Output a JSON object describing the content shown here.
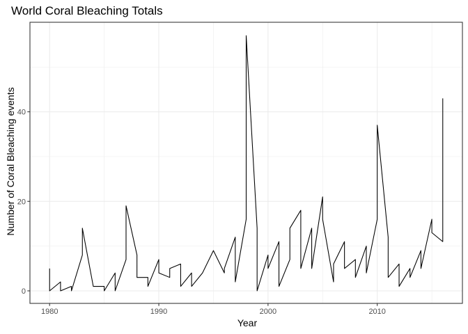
{
  "chart_data": {
    "type": "line",
    "title": "World Coral Bleaching Totals",
    "xlabel": "Year",
    "ylabel": "Number of Coral Bleaching events",
    "xlim": [
      1978.2,
      2017.8
    ],
    "ylim": [
      -2.8,
      60
    ],
    "xticks": [
      1980,
      1990,
      2000,
      2010
    ],
    "yticks": [
      0,
      20,
      40
    ],
    "grid": true,
    "line_color": "#000000",
    "x": [
      1980,
      1980,
      1981,
      1981,
      1982,
      1982,
      1983,
      1983,
      1984,
      1985,
      1985,
      1986,
      1986,
      1987,
      1987,
      1988,
      1988,
      1989,
      1989,
      1990,
      1990,
      1991,
      1991,
      1992,
      1992,
      1993,
      1993,
      1994,
      1995,
      1996,
      1996,
      1997,
      1997,
      1998,
      1998,
      1999,
      1999,
      2000,
      2000,
      2001,
      2001,
      2002,
      2002,
      2003,
      2003,
      2004,
      2004,
      2005,
      2005,
      2006,
      2006,
      2007,
      2007,
      2008,
      2008,
      2009,
      2009,
      2010,
      2010,
      2011,
      2011,
      2012,
      2012,
      2013,
      2013,
      2014,
      2014,
      2015,
      2015,
      2016,
      2016
    ],
    "y": [
      5,
      0,
      2,
      0,
      1,
      0,
      8,
      14,
      1,
      1,
      0,
      4,
      0,
      7,
      19,
      8,
      3,
      3,
      1,
      7,
      4,
      3,
      5,
      6,
      1,
      4,
      1,
      4,
      9,
      4,
      5,
      12,
      2,
      16,
      57,
      14,
      0,
      8,
      5,
      11,
      1,
      7,
      14,
      18,
      5,
      14,
      5,
      21,
      16,
      2,
      6,
      11,
      5,
      7,
      3,
      10,
      4,
      16,
      37,
      12,
      3,
      6,
      1,
      5,
      3,
      9,
      5,
      16,
      13,
      11,
      43
    ]
  }
}
